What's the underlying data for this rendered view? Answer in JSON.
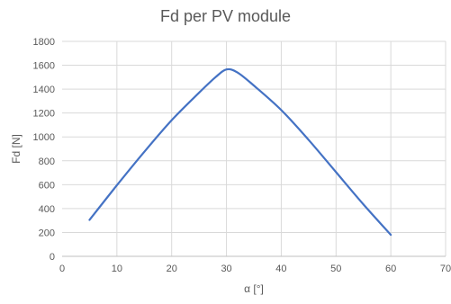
{
  "chart_data": {
    "type": "line",
    "title": "Fd per PV module",
    "xlabel": "α [°]",
    "ylabel": "Fd [N]",
    "xlim": [
      0,
      70
    ],
    "ylim": [
      0,
      1800
    ],
    "xticks": [
      0,
      10,
      20,
      30,
      40,
      50,
      60,
      70
    ],
    "yticks": [
      0,
      200,
      400,
      600,
      800,
      1000,
      1200,
      1400,
      1600,
      1800
    ],
    "grid": true,
    "legend": "none",
    "series": [
      {
        "color": "#4472c4",
        "x": [
          5,
          10,
          15,
          20,
          25,
          28,
          30,
          32,
          35,
          40,
          45,
          50,
          55,
          60
        ],
        "y": [
          305,
          595,
          875,
          1140,
          1370,
          1500,
          1565,
          1540,
          1430,
          1225,
          975,
          705,
          435,
          180
        ]
      }
    ]
  }
}
